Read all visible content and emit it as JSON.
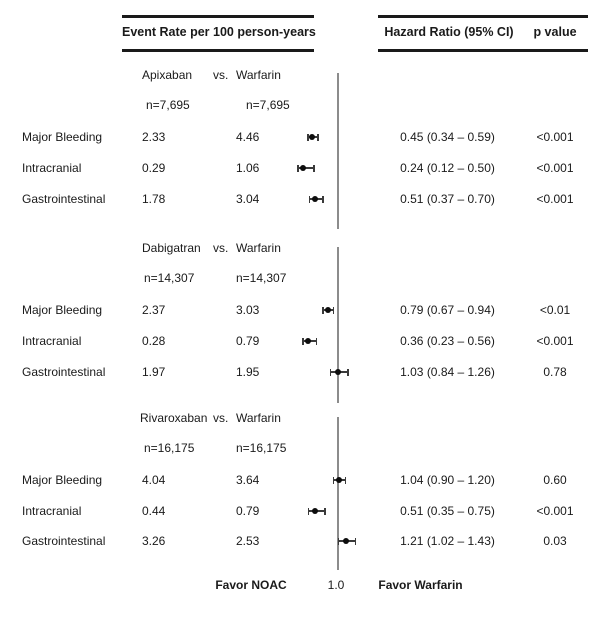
{
  "chart_data": {
    "type": "scatter",
    "subtype": "forest-plot",
    "column_headers": {
      "event_rate": "Event Rate per 100 person-years",
      "hazard_ratio": "Hazard Ratio (95% CI)",
      "p_value": "p value"
    },
    "axis": {
      "scale": "linear",
      "reference_value": 1.0,
      "reference_label": "1.0",
      "xlim": [
        0,
        1.5
      ],
      "favor_left": "Favor NOAC",
      "favor_right": "Favor Warfarin"
    },
    "groups": [
      {
        "treatment": "Apixaban",
        "versus_label": "vs.",
        "comparator": "Warfarin",
        "treatment_n": "n=7,695",
        "comparator_n": "n=7,695",
        "rows": [
          {
            "label": "Major Bleeding",
            "treatment_rate": "2.33",
            "comparator_rate": "4.46",
            "hr": 0.45,
            "ci_low": 0.34,
            "ci_high": 0.59,
            "hr_ci_text": "0.45 (0.34 – 0.59)",
            "p_value": "<0.001"
          },
          {
            "label": "Intracranial",
            "treatment_rate": "0.29",
            "comparator_rate": "1.06",
            "hr": 0.24,
            "ci_low": 0.12,
            "ci_high": 0.5,
            "hr_ci_text": "0.24 (0.12 – 0.50)",
            "p_value": "<0.001"
          },
          {
            "label": "Gastrointestinal",
            "treatment_rate": "1.78",
            "comparator_rate": "3.04",
            "hr": 0.51,
            "ci_low": 0.37,
            "ci_high": 0.7,
            "hr_ci_text": "0.51 (0.37 – 0.70)",
            "p_value": "<0.001"
          }
        ]
      },
      {
        "treatment": "Dabigatran",
        "versus_label": "vs.",
        "comparator": "Warfarin",
        "treatment_n": "n=14,307",
        "comparator_n": "n=14,307",
        "rows": [
          {
            "label": "Major Bleeding",
            "treatment_rate": "2.37",
            "comparator_rate": "3.03",
            "hr": 0.79,
            "ci_low": 0.67,
            "ci_high": 0.94,
            "hr_ci_text": "0.79 (0.67 – 0.94)",
            "p_value": "<0.01"
          },
          {
            "label": "Intracranial",
            "treatment_rate": "0.28",
            "comparator_rate": "0.79",
            "hr": 0.36,
            "ci_low": 0.23,
            "ci_high": 0.56,
            "hr_ci_text": "0.36 (0.23 – 0.56)",
            "p_value": "<0.001"
          },
          {
            "label": "Gastrointestinal",
            "treatment_rate": "1.97",
            "comparator_rate": "1.95",
            "hr": 1.03,
            "ci_low": 0.84,
            "ci_high": 1.26,
            "hr_ci_text": "1.03 (0.84 – 1.26)",
            "p_value": "0.78"
          }
        ]
      },
      {
        "treatment": "Rivaroxaban",
        "versus_label": "vs.",
        "comparator": "Warfarin",
        "treatment_n": "n=16,175",
        "comparator_n": "n=16,175",
        "rows": [
          {
            "label": "Major Bleeding",
            "treatment_rate": "4.04",
            "comparator_rate": "3.64",
            "hr": 1.04,
            "ci_low": 0.9,
            "ci_high": 1.2,
            "hr_ci_text": "1.04 (0.90 – 1.20)",
            "p_value": "0.60"
          },
          {
            "label": "Intracranial",
            "treatment_rate": "0.44",
            "comparator_rate": "0.79",
            "hr": 0.51,
            "ci_low": 0.35,
            "ci_high": 0.75,
            "hr_ci_text": "0.51 (0.35 – 0.75)",
            "p_value": "<0.001"
          },
          {
            "label": "Gastrointestinal",
            "treatment_rate": "3.26",
            "comparator_rate": "2.53",
            "hr": 1.21,
            "ci_low": 1.02,
            "ci_high": 1.43,
            "hr_ci_text": "1.21 (1.02 – 1.43)",
            "p_value": "0.03"
          }
        ]
      }
    ]
  }
}
